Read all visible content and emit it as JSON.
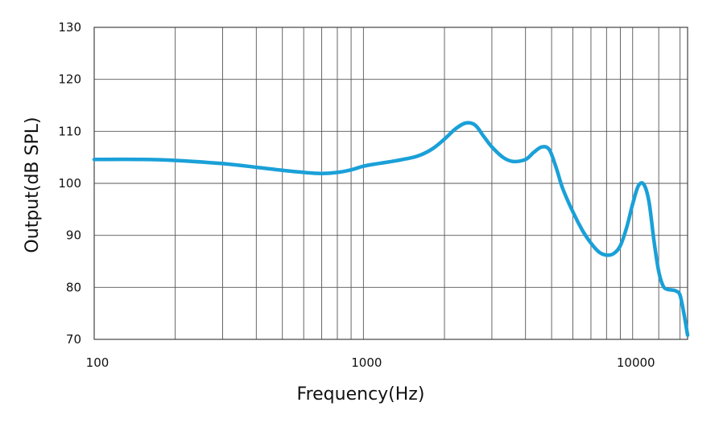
{
  "chart_data": {
    "type": "line",
    "title": "",
    "xlabel": "Frequency(Hz)",
    "ylabel": "Output(dB SPL)",
    "x_scale": "log",
    "xlim": [
      100,
      16000
    ],
    "ylim": [
      70,
      130
    ],
    "grid": true,
    "legend": "none",
    "color": "#1aa0d8",
    "x_ticks": [
      {
        "value": 100,
        "label": "100"
      },
      {
        "value": 1000,
        "label": "1000"
      },
      {
        "value": 10000,
        "label": "10000"
      }
    ],
    "y_ticks": [
      {
        "value": 70,
        "label": "70"
      },
      {
        "value": 80,
        "label": "80"
      },
      {
        "value": 90,
        "label": "90"
      },
      {
        "value": 100,
        "label": "100"
      },
      {
        "value": 110,
        "label": "110"
      },
      {
        "value": 120,
        "label": "120"
      },
      {
        "value": 130,
        "label": "130"
      }
    ],
    "x_gridlines": [
      100,
      200,
      300,
      400,
      500,
      600,
      700,
      800,
      900,
      1000,
      2000,
      3000,
      4000,
      5000,
      6000,
      7000,
      8000,
      9000,
      10000,
      12500,
      15000
    ],
    "series": [
      {
        "x": [
          100,
          150,
          200,
          300,
          400,
          500,
          600,
          700,
          800,
          900,
          1000,
          1100,
          1200,
          1400,
          1600,
          1800,
          2000,
          2200,
          2400,
          2600,
          2800,
          3000,
          3300,
          3600,
          4000,
          4300,
          4600,
          4900,
          5200,
          5500,
          6000,
          6500,
          7000,
          7500,
          8000,
          8500,
          9000,
          9500,
          10000,
          10500,
          11000,
          11500,
          12000,
          12500,
          13000,
          13500,
          14000,
          14500,
          15000,
          15500,
          16000
        ],
        "y": [
          104.6,
          104.6,
          104.4,
          103.8,
          103.1,
          102.5,
          102.1,
          101.9,
          102.1,
          102.6,
          103.3,
          103.7,
          104.0,
          104.6,
          105.3,
          106.6,
          108.5,
          110.5,
          111.6,
          111.2,
          109.0,
          107.0,
          105.0,
          104.2,
          104.6,
          106.0,
          107.0,
          106.5,
          103.0,
          99.0,
          94.5,
          91.0,
          88.5,
          86.8,
          86.2,
          86.5,
          88.0,
          91.5,
          96.0,
          99.5,
          99.8,
          96.5,
          89.0,
          83.0,
          80.2,
          79.6,
          79.5,
          79.3,
          78.5,
          75.0,
          70.8
        ]
      }
    ]
  }
}
